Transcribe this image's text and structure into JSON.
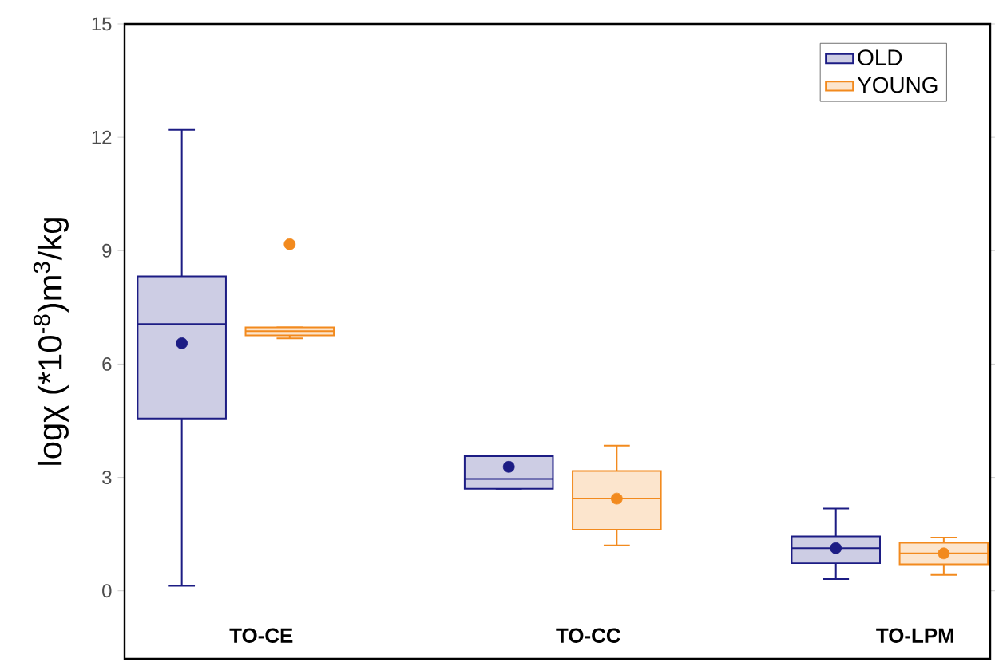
{
  "chart_data": {
    "type": "box",
    "ylabel": "logχ (*10$^{-8}$)m$^{3}$/kg",
    "categories": [
      "TO-CE",
      "TO-CC",
      "TO-LPM"
    ],
    "series": [
      {
        "name": "OLD",
        "color": "#1c1c84",
        "boxes": [
          {
            "low": 0.13,
            "q1": 4.56,
            "median": 7.06,
            "q3": 8.32,
            "high": 12.2,
            "mean": 6.55
          },
          {
            "low": 2.7,
            "q1": 2.7,
            "median": 2.96,
            "q3": 3.56,
            "high": 3.56,
            "mean": 3.28
          },
          {
            "low": 0.31,
            "q1": 0.73,
            "median": 1.13,
            "q3": 1.44,
            "high": 2.18,
            "mean": 1.13
          }
        ]
      },
      {
        "name": "YOUNG",
        "color": "#f28a1e",
        "boxes": [
          {
            "low": 6.68,
            "q1": 6.76,
            "median": 6.87,
            "q3": 6.97,
            "high": 6.97,
            "mean": 9.17
          },
          {
            "low": 1.2,
            "q1": 1.62,
            "median": 2.44,
            "q3": 3.17,
            "high": 3.84,
            "mean": 2.44
          },
          {
            "low": 0.42,
            "q1": 0.7,
            "median": 0.99,
            "q3": 1.27,
            "high": 1.41,
            "mean": 0.99
          }
        ]
      }
    ],
    "ylim": [
      -1.8,
      15
    ],
    "yticks": [
      0,
      3,
      6,
      9,
      12,
      15
    ],
    "legend": "top right"
  }
}
